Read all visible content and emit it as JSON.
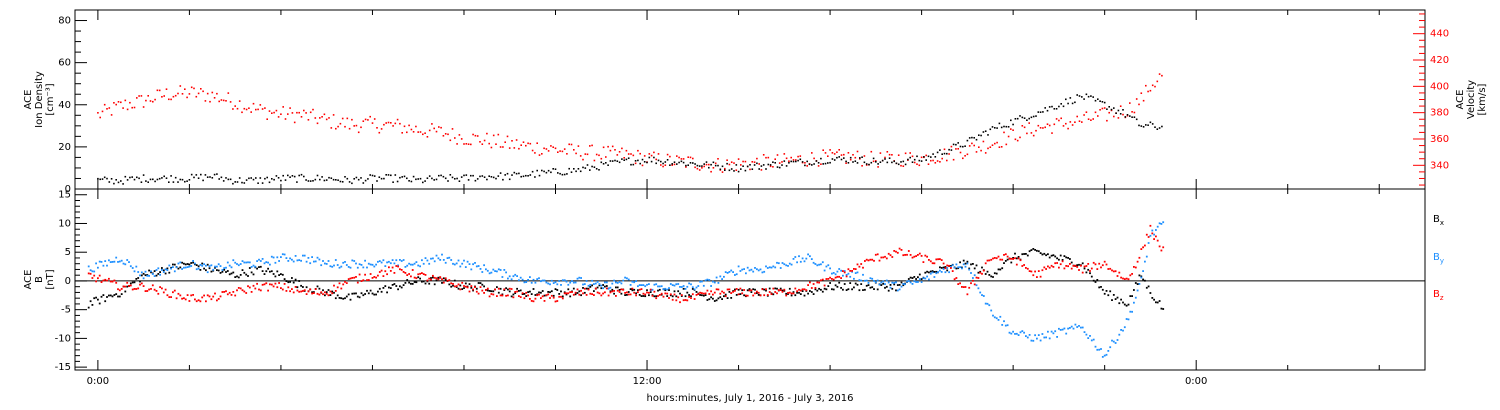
{
  "chart_data": [
    {
      "type": "scatter",
      "panel": "top",
      "ylabel_left": [
        "ACE",
        "Ion Density",
        "[cm⁻³]"
      ],
      "ylabel_right": [
        "ACE",
        "Velocity",
        "[km/s]"
      ],
      "left_axis": {
        "ylim": [
          0,
          85
        ],
        "ticks": [
          0,
          20,
          40,
          60,
          80
        ]
      },
      "right_axis": {
        "ylim": [
          322,
          458
        ],
        "ticks": [
          340,
          360,
          380,
          400,
          420,
          440
        ]
      },
      "series": [
        {
          "axis": "left",
          "color": "#000000",
          "x": [
            0.0,
            0.5,
            1.0,
            1.5,
            2.0,
            2.5,
            3.0,
            3.5,
            4.0,
            4.5,
            5.0,
            5.5,
            6.0,
            6.5,
            7.0,
            7.5,
            8.0,
            8.5,
            9.0,
            9.5,
            10.0,
            10.5,
            11.0,
            11.5,
            12.0,
            12.5,
            13.0,
            13.5,
            14.0,
            14.5,
            15.0,
            15.5,
            16.0,
            16.5,
            17.0,
            17.5,
            18.0,
            18.5,
            19.0,
            19.5,
            20.0,
            20.5,
            21.0,
            21.5,
            22.0,
            22.5,
            22.8,
            23.0,
            23.3
          ],
          "values": [
            4,
            4,
            5,
            5,
            5,
            6,
            4,
            4,
            5,
            5,
            5,
            4,
            5,
            5,
            4,
            5,
            5,
            6,
            6,
            7,
            8,
            9,
            11,
            13,
            14,
            13,
            12,
            11,
            10,
            11,
            12,
            13,
            14,
            14,
            13,
            13,
            14,
            18,
            22,
            28,
            32,
            36,
            40,
            44,
            40,
            35,
            30,
            30,
            29
          ]
        },
        {
          "axis": "right",
          "color": "#ff0000",
          "x": [
            0.0,
            0.5,
            1.0,
            1.5,
            2.0,
            2.5,
            3.0,
            3.5,
            4.0,
            4.5,
            5.0,
            5.5,
            6.0,
            6.5,
            7.0,
            7.5,
            8.0,
            8.5,
            9.0,
            9.5,
            10.0,
            10.5,
            11.0,
            11.5,
            12.0,
            12.5,
            13.0,
            13.5,
            14.0,
            14.5,
            15.0,
            15.5,
            16.0,
            16.5,
            17.0,
            17.5,
            18.0,
            18.5,
            19.0,
            19.5,
            20.0,
            20.5,
            21.0,
            21.5,
            22.0,
            22.5,
            22.8,
            23.0,
            23.3
          ],
          "values": [
            378,
            385,
            389,
            394,
            395,
            393,
            388,
            382,
            379,
            378,
            374,
            371,
            371,
            370,
            367,
            365,
            361,
            359,
            356,
            354,
            352,
            350,
            349,
            348,
            345,
            343,
            342,
            340,
            341,
            342,
            343,
            345,
            346,
            346,
            344,
            345,
            345,
            348,
            352,
            356,
            363,
            368,
            371,
            374,
            378,
            382,
            390,
            400,
            410
          ]
        }
      ]
    },
    {
      "type": "scatter",
      "panel": "bottom",
      "ylabel_left": [
        "ACE",
        "B",
        "[nT]"
      ],
      "ylim": [
        -15.5,
        16
      ],
      "ticks": [
        -15,
        -10,
        -5,
        0,
        5,
        10,
        15
      ],
      "legend": [
        {
          "label": "B",
          "sub": "x",
          "color": "#000000"
        },
        {
          "label": "B",
          "sub": "y",
          "color": "#1e90ff"
        },
        {
          "label": "B",
          "sub": "z",
          "color": "#ff0000"
        }
      ],
      "series": [
        {
          "name": "Bx",
          "color": "#000000",
          "x": [
            -0.2,
            0.5,
            1.0,
            1.5,
            2.0,
            2.5,
            3.0,
            3.5,
            4.0,
            4.5,
            5.0,
            5.5,
            6.0,
            6.5,
            7.0,
            7.5,
            8.0,
            8.5,
            9.0,
            9.5,
            10.0,
            10.5,
            11.0,
            11.5,
            12.0,
            12.5,
            13.0,
            13.5,
            14.0,
            14.5,
            15.0,
            15.5,
            16.0,
            16.5,
            17.0,
            17.5,
            18.0,
            18.5,
            19.0,
            19.5,
            20.0,
            20.5,
            21.0,
            21.5,
            22.0,
            22.5,
            22.8,
            23.0,
            23.3
          ],
          "values": [
            -4,
            -2,
            1,
            2,
            3,
            2,
            1,
            2,
            1,
            -1,
            -2,
            -3,
            -2,
            -1,
            0,
            0,
            -1,
            -1,
            -2,
            -2,
            -2,
            -2,
            -1,
            -2,
            -2,
            -2,
            -2,
            -3,
            -2,
            -2,
            -2,
            -2,
            -1,
            -1,
            -1,
            -1,
            1,
            2,
            3,
            1,
            4,
            5,
            4,
            3,
            -2,
            -4,
            1,
            -2,
            -5
          ]
        },
        {
          "name": "By",
          "color": "#1e90ff",
          "x": [
            -0.2,
            0.5,
            1.0,
            1.5,
            2.0,
            2.5,
            3.0,
            3.5,
            4.0,
            4.5,
            5.0,
            5.5,
            6.0,
            6.5,
            7.0,
            7.5,
            8.0,
            8.5,
            9.0,
            9.5,
            10.0,
            10.5,
            11.0,
            11.5,
            12.0,
            12.5,
            13.0,
            13.5,
            14.0,
            14.5,
            15.0,
            15.5,
            16.0,
            16.5,
            17.0,
            17.5,
            18.0,
            18.5,
            19.0,
            19.5,
            20.0,
            20.5,
            21.0,
            21.5,
            22.0,
            22.5,
            22.8,
            23.0,
            23.3
          ],
          "values": [
            2,
            4,
            1,
            2,
            3,
            2,
            3,
            3,
            4,
            4,
            3,
            3,
            3,
            3,
            3,
            4,
            3,
            2,
            1,
            0,
            0,
            0,
            -1,
            0,
            -1,
            -1,
            -1,
            0,
            2,
            2,
            3,
            4,
            2,
            1,
            0,
            -1,
            0,
            2,
            3,
            -5,
            -9,
            -10,
            -9,
            -8,
            -13,
            -7,
            0,
            8,
            10
          ]
        },
        {
          "name": "Bz",
          "color": "#ff0000",
          "x": [
            -0.2,
            0.5,
            1.0,
            1.5,
            2.0,
            2.5,
            3.0,
            3.5,
            4.0,
            4.5,
            5.0,
            5.5,
            6.0,
            6.5,
            7.0,
            7.5,
            8.0,
            8.5,
            9.0,
            9.5,
            10.0,
            10.5,
            11.0,
            11.5,
            12.0,
            12.5,
            13.0,
            13.5,
            14.0,
            14.5,
            15.0,
            15.5,
            16.0,
            16.5,
            17.0,
            17.5,
            18.0,
            18.5,
            19.0,
            19.5,
            20.0,
            20.5,
            21.0,
            21.5,
            22.0,
            22.5,
            22.8,
            23.0,
            23.3
          ],
          "values": [
            1,
            -1,
            -1,
            -2,
            -3,
            -3,
            -2,
            -1,
            -1,
            -2,
            -2,
            0,
            1,
            2,
            1,
            0,
            -1,
            -2,
            -2,
            -3,
            -3,
            -2,
            -2,
            -2,
            -2,
            -3,
            -3,
            -2,
            -2,
            -2,
            -2,
            -1,
            0,
            2,
            4,
            5,
            4,
            3,
            -2,
            4,
            4,
            1,
            3,
            2,
            3,
            0,
            5,
            9,
            5
          ]
        }
      ]
    }
  ],
  "x_axis": {
    "xlim": [
      -0.5,
      29.0
    ],
    "tick_labels": [
      {
        "x": 0,
        "label": "0:00"
      },
      {
        "x": 12,
        "label": "12:00"
      },
      {
        "x": 24,
        "label": "0:00"
      }
    ],
    "title": "hours:minutes, July  1, 2016 - July  3, 2016"
  }
}
